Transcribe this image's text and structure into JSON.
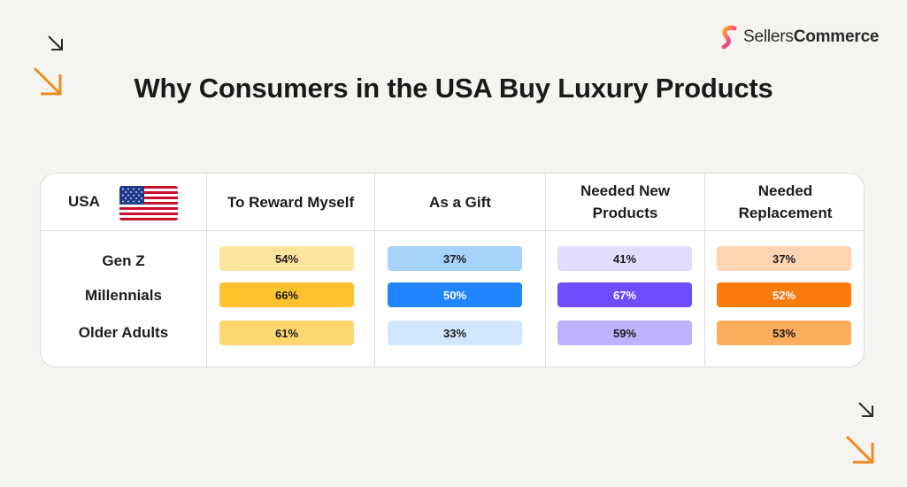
{
  "brand": {
    "name_regular": "Sellers",
    "name_bold": "Commerce"
  },
  "icons": {
    "logo": "sellerscommerce-logo-icon",
    "flag": "usa-flag-icon",
    "arrows": "arrow-down-right-icon"
  },
  "chart_data": {
    "type": "table",
    "title": "Why Consumers in the USA Buy Luxury Products",
    "corner_label": "USA",
    "columns": [
      "To Reward Myself",
      "As a Gift",
      "Needed New Products",
      "Needed Replacement"
    ],
    "rows": [
      {
        "label": "Gen Z",
        "values": [
          "54%",
          "37%",
          "41%",
          "37%"
        ]
      },
      {
        "label": "Millennials",
        "values": [
          "66%",
          "50%",
          "67%",
          "52%"
        ]
      },
      {
        "label": "Older Adults",
        "values": [
          "61%",
          "33%",
          "59%",
          "53%"
        ]
      }
    ],
    "colors": [
      [
        "#ffe49c",
        "#a7d2fb",
        "#e4dcfd",
        "#fdd5b2"
      ],
      [
        "#fec22c",
        "#2185ff",
        "#6f4cff",
        "#fb7b0f"
      ],
      [
        "#ffd76f",
        "#d1e7fd",
        "#bfb2fc",
        "#fdad5e"
      ]
    ]
  }
}
